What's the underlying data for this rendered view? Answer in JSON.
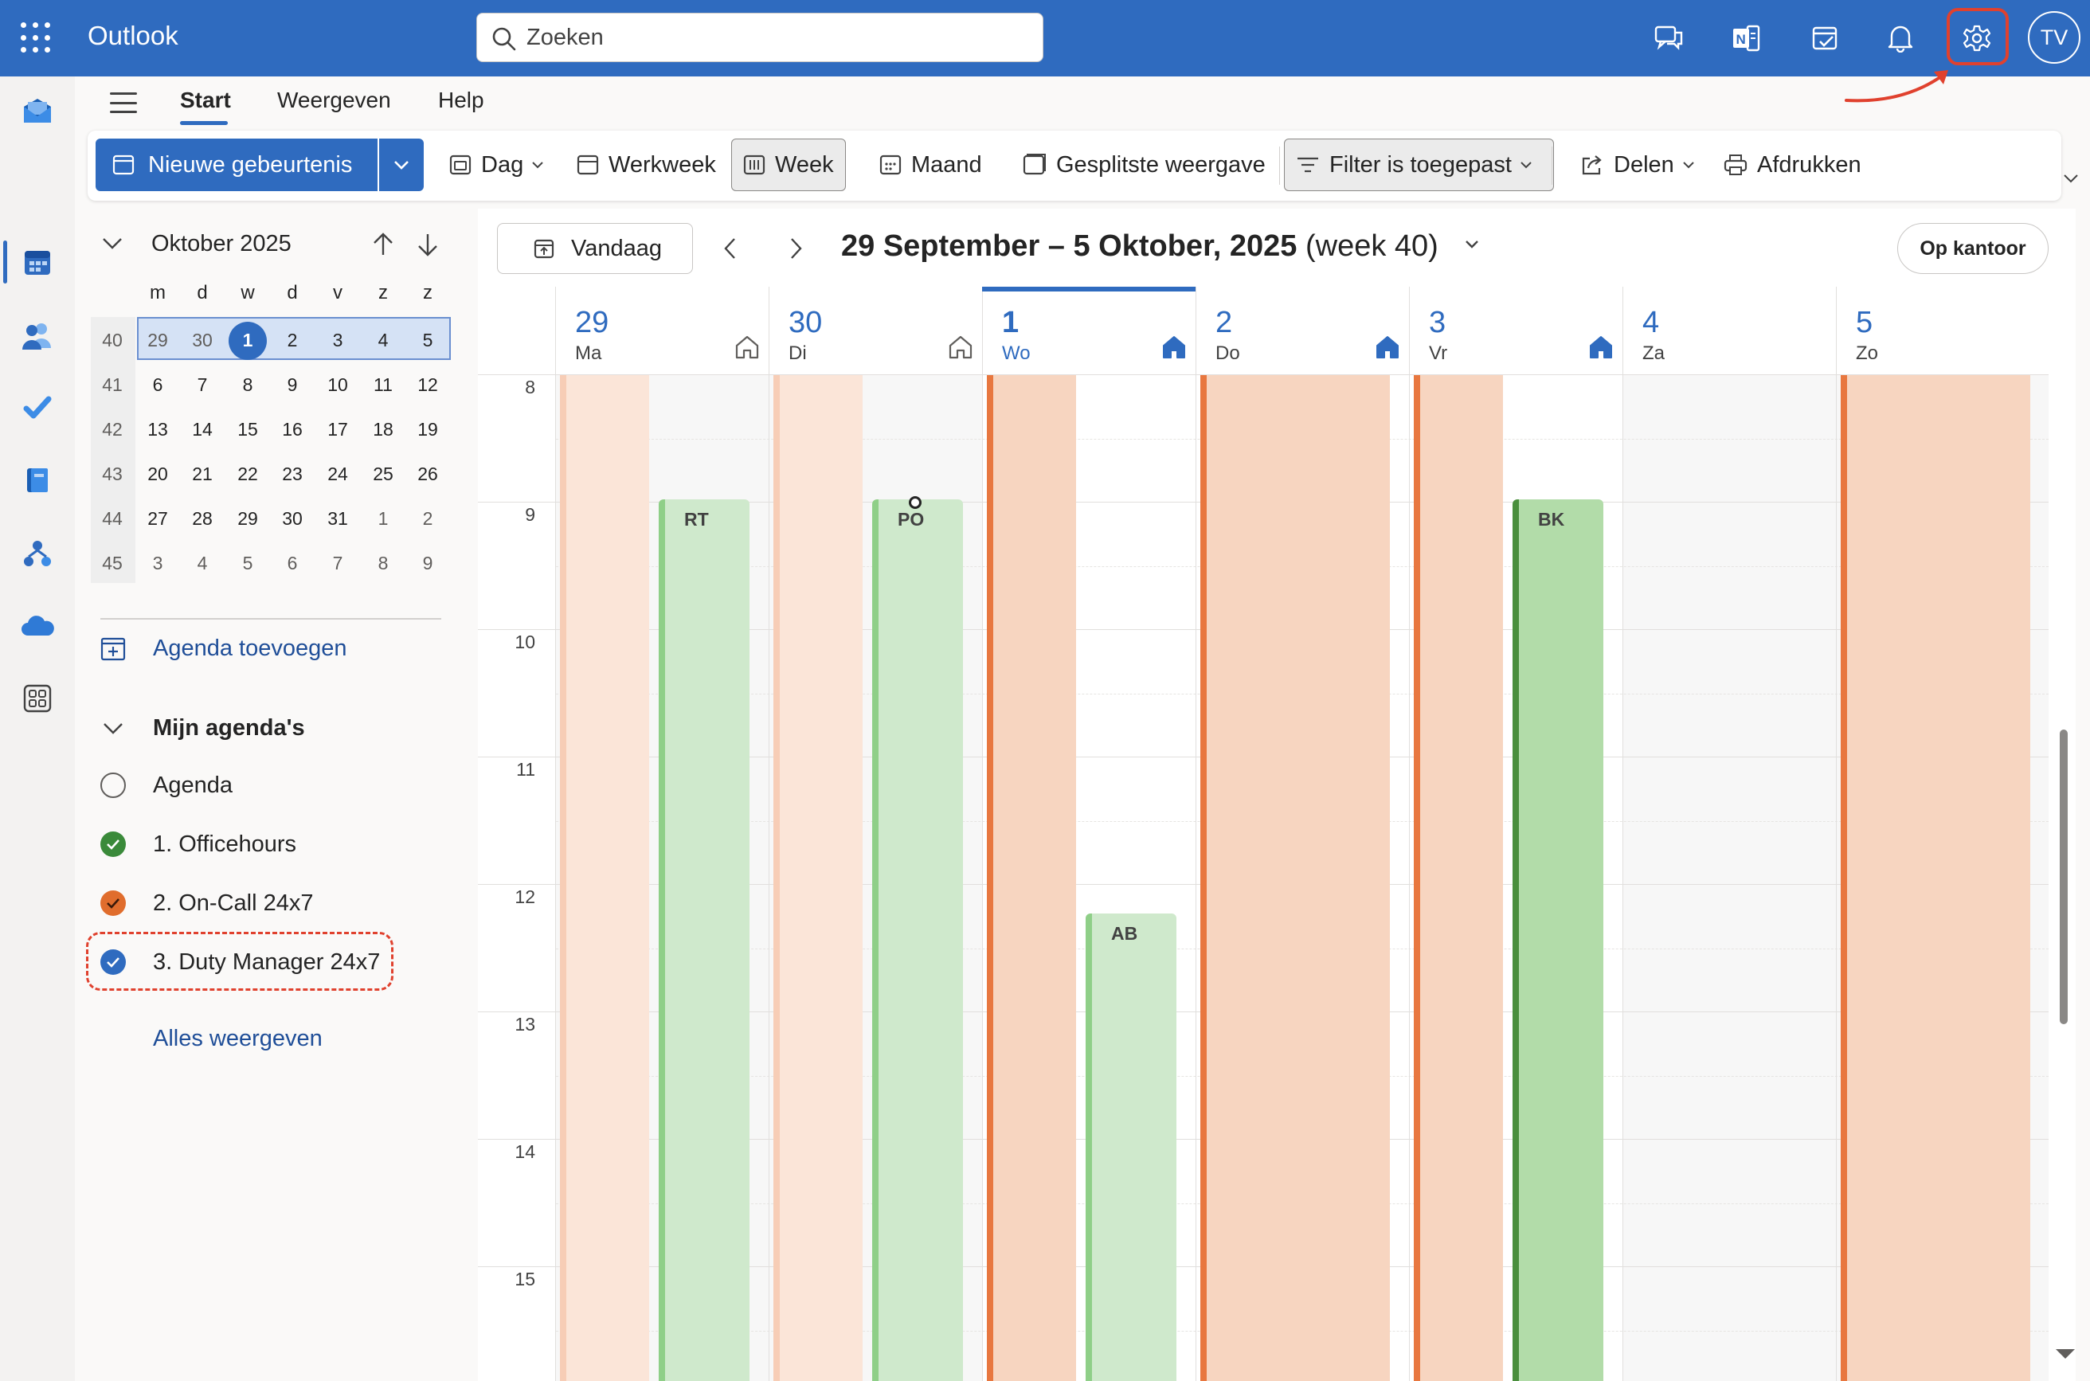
{
  "header": {
    "app_title": "Outlook",
    "search_placeholder": "Zoeken",
    "user_initials": "TV",
    "accent": "#2f6bbf"
  },
  "rail": {
    "items": [
      "mail-icon",
      "calendar-icon",
      "people-icon",
      "todo-icon",
      "files-icon",
      "org-icon",
      "onedrive-icon",
      "apps-icon"
    ],
    "active": "calendar-icon"
  },
  "ribbon_tabs": {
    "start": "Start",
    "view": "Weergeven",
    "help": "Help",
    "active": "Start"
  },
  "toolbar": {
    "new_event": "Nieuwe gebeurtenis",
    "day": "Dag",
    "workweek": "Werkweek",
    "week": "Week",
    "month": "Maand",
    "split": "Gesplitste weergave",
    "filter": "Filter is toegepast",
    "share": "Delen",
    "print": "Afdrukken",
    "selected_view": "Week"
  },
  "mini_calendar": {
    "title": "Oktober 2025",
    "day_headers": [
      "m",
      "d",
      "w",
      "d",
      "v",
      "z",
      "z"
    ],
    "weeks": [
      {
        "num": "40",
        "days": [
          "29",
          "30",
          "1",
          "2",
          "3",
          "4",
          "5"
        ]
      },
      {
        "num": "41",
        "days": [
          "6",
          "7",
          "8",
          "9",
          "10",
          "11",
          "12"
        ]
      },
      {
        "num": "42",
        "days": [
          "13",
          "14",
          "15",
          "16",
          "17",
          "18",
          "19"
        ]
      },
      {
        "num": "43",
        "days": [
          "20",
          "21",
          "22",
          "23",
          "24",
          "25",
          "26"
        ]
      },
      {
        "num": "44",
        "days": [
          "27",
          "28",
          "29",
          "30",
          "31",
          "1",
          "2"
        ]
      },
      {
        "num": "45",
        "days": [
          "3",
          "4",
          "5",
          "6",
          "7",
          "8",
          "9"
        ]
      }
    ],
    "today": "1",
    "selected_week": "40"
  },
  "sidebar": {
    "add_calendar": "Agenda toevoegen",
    "my_calendars": "Mijn agenda's",
    "calendars": [
      {
        "label": "Agenda",
        "checked": false,
        "color": ""
      },
      {
        "label": "1. Officehours",
        "checked": true,
        "color": "#3a8a3a"
      },
      {
        "label": "2. On-Call 24x7",
        "checked": true,
        "color": "#e06d2d"
      },
      {
        "label": "3. Duty Manager 24x7",
        "checked": true,
        "color": "#2f6bbf"
      }
    ],
    "show_all": "Alles weergeven"
  },
  "calendar": {
    "today_button": "Vandaag",
    "range_bold": "29 September – 5 Oktober, 2025",
    "range_week": " (week 40)",
    "location_button": "Op kantoor",
    "days": [
      {
        "num": "29",
        "name": "Ma",
        "home": "outline"
      },
      {
        "num": "30",
        "name": "Di",
        "home": "outline"
      },
      {
        "num": "1",
        "name": "Wo",
        "home": "filled",
        "today": true
      },
      {
        "num": "2",
        "name": "Do",
        "home": "filled"
      },
      {
        "num": "3",
        "name": "Vr",
        "home": "filled"
      },
      {
        "num": "4",
        "name": "Za",
        "home": ""
      },
      {
        "num": "5",
        "name": "Zo",
        "home": ""
      }
    ],
    "hours": [
      "8",
      "9",
      "10",
      "11",
      "12",
      "13",
      "14",
      "15"
    ],
    "events": [
      {
        "label": "RT",
        "day": "29"
      },
      {
        "label": "PO",
        "day": "30"
      },
      {
        "label": "AB",
        "day": "1"
      },
      {
        "label": "BK",
        "day": "3"
      }
    ]
  }
}
